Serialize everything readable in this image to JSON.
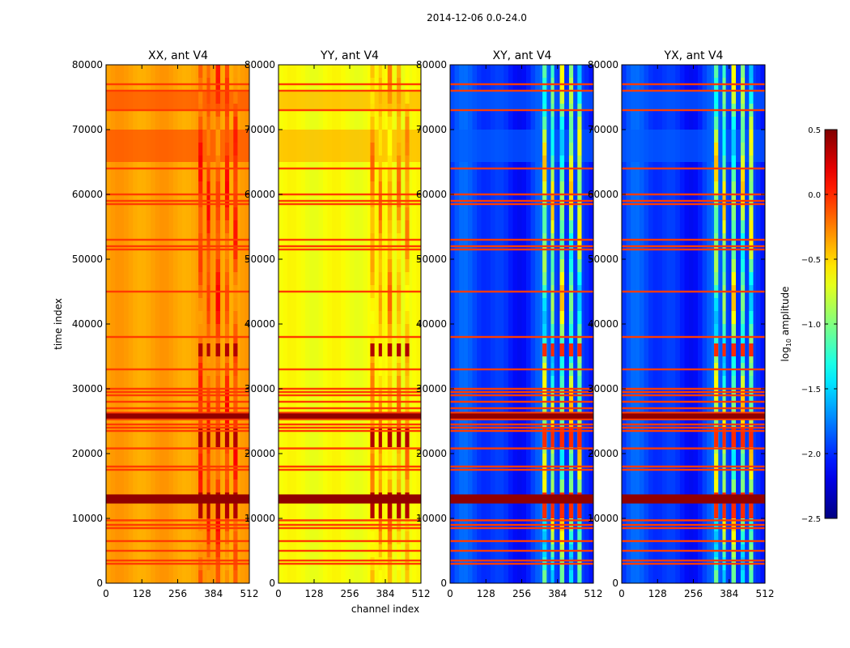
{
  "figure": {
    "suptitle": "2014-12-06 0.0-24.0",
    "xlabel": "channel index",
    "ylabel": "time index"
  },
  "chart_data": {
    "type": "heatmap",
    "x_ticks": [
      "0",
      "128",
      "256",
      "384",
      "512"
    ],
    "y_ticks": [
      "0",
      "10000",
      "20000",
      "30000",
      "40000",
      "50000",
      "60000",
      "70000",
      "80000"
    ],
    "xlim": [
      0,
      512
    ],
    "ylim": [
      0,
      80000
    ],
    "panels": [
      {
        "title": "XX, ant V4",
        "mode": "auto",
        "level": -0.35
      },
      {
        "title": "YY, ant V4",
        "mode": "auto",
        "level": -0.65
      },
      {
        "title": "XY, ant V4",
        "mode": "cross",
        "level": -2.05
      },
      {
        "title": "YX, ant V4",
        "mode": "cross",
        "level": -2.05
      }
    ],
    "rfi_band_channels": [
      [
        330,
        345
      ],
      [
        360,
        372
      ],
      [
        392,
        408
      ],
      [
        425,
        440
      ],
      [
        455,
        470
      ]
    ],
    "flagged_time_rows": [
      3000,
      3500,
      5000,
      6500,
      8500,
      9000,
      9700,
      12500,
      13000,
      13500,
      17500,
      18000,
      20800,
      23500,
      24000,
      24500,
      25300,
      25800,
      26300,
      27000,
      28000,
      29000,
      29500,
      30000,
      33000,
      38000,
      45000,
      51500,
      52000,
      53000,
      58500,
      59000,
      60000,
      64000,
      73000,
      76000,
      77000
    ],
    "strong_flag_rows": [
      12700,
      13300,
      25800
    ],
    "bright_blocks": [
      [
        65000,
        70000
      ],
      [
        73000,
        76000
      ]
    ],
    "colorbar": {
      "label_prefix": "log",
      "label_sub": "10",
      "label_suffix": " amplitude",
      "range": [
        -2.5,
        0.5
      ],
      "ticks": [
        "0.5",
        "0.0",
        "−0.5",
        "−1.0",
        "−1.5",
        "−2.0",
        "−2.5"
      ],
      "tick_values": [
        0.5,
        0.0,
        -0.5,
        -1.0,
        -1.5,
        -2.0,
        -2.5
      ],
      "colormap": "jet"
    }
  }
}
